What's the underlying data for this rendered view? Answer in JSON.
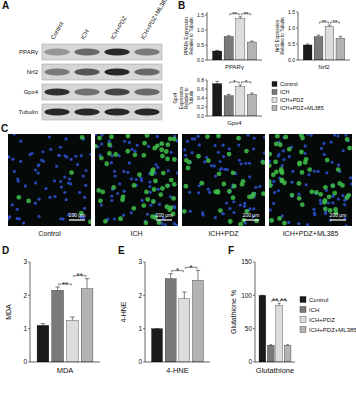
{
  "panel_labels": [
    "A",
    "B",
    "C",
    "D",
    "E",
    "F"
  ],
  "blot": {
    "lanes": [
      "Control",
      "ICH",
      "ICH+PDZ",
      "ICH+PDZ+ML385"
    ],
    "rows": [
      "PPARγ",
      "Nrf2",
      "Gpx4",
      "Tubulin"
    ]
  },
  "images": {
    "groups": [
      "Control",
      "ICH",
      "ICH+PDZ",
      "ICH+PDZ+ML385"
    ],
    "scale_bar": "200 μm"
  },
  "chart_data": [
    {
      "type": "bar",
      "y_label": "PPARγ Expression Relative to Tubulin",
      "categories": [
        "PPARγ"
      ],
      "series": [
        {
          "color": "#1a1a1a",
          "values": [
            0.3
          ],
          "errors": [
            0.02
          ]
        },
        {
          "color": "#7a7a7a",
          "values": [
            0.78
          ],
          "errors": [
            0.03
          ]
        },
        {
          "color": "#dcdcdc",
          "values": [
            1.38
          ],
          "errors": [
            0.06
          ]
        },
        {
          "color": "#b3b3b3",
          "values": [
            0.6
          ],
          "errors": [
            0.03
          ]
        }
      ],
      "ylim": [
        0,
        1.6
      ],
      "yticks": [
        {
          "value": 0,
          "label": "0.0"
        },
        {
          "value": 0.5,
          "label": "0.5"
        },
        {
          "value": 1,
          "label": "1.0"
        },
        {
          "value": 1.5,
          "label": "1.5"
        }
      ],
      "annotations": [
        {
          "text": "**",
          "from": 1,
          "to": 2
        },
        {
          "text": "**",
          "from": 2,
          "to": 3
        }
      ]
    },
    {
      "type": "bar",
      "y_label": "Nrf2 Expression Relative to Tubulin",
      "categories": [
        "Nrf2"
      ],
      "series": [
        {
          "color": "#1a1a1a",
          "values": [
            0.47
          ],
          "errors": [
            0.03
          ]
        },
        {
          "color": "#7a7a7a",
          "values": [
            0.73
          ],
          "errors": [
            0.05
          ]
        },
        {
          "color": "#dcdcdc",
          "values": [
            1.05
          ],
          "errors": [
            0.04
          ]
        },
        {
          "color": "#b3b3b3",
          "values": [
            0.68
          ],
          "errors": [
            0.06
          ]
        }
      ],
      "ylim": [
        0,
        1.5
      ],
      "yticks": [
        {
          "value": 0,
          "label": "0.0"
        },
        {
          "value": 0.5,
          "label": "0.5"
        },
        {
          "value": 1,
          "label": "1.0"
        },
        {
          "value": 1.5,
          "label": "1.5"
        }
      ],
      "annotations": [
        {
          "text": "**",
          "from": 1,
          "to": 2
        },
        {
          "text": "**",
          "from": 2,
          "to": 3
        }
      ]
    },
    {
      "type": "bar",
      "y_label": "Gpx4 Expression Relative to Tubulin",
      "categories": [
        "Gpx4"
      ],
      "series": [
        {
          "name": "Control",
          "color": "#1a1a1a",
          "values": [
            0.72
          ],
          "errors": [
            0.05
          ]
        },
        {
          "name": "ICH",
          "color": "#7a7a7a",
          "values": [
            0.45
          ],
          "errors": [
            0.03
          ]
        },
        {
          "name": "ICH+PDZ",
          "color": "#dcdcdc",
          "values": [
            0.65
          ],
          "errors": [
            0.04
          ]
        },
        {
          "name": "ICH+PDZ+ML385",
          "color": "#b3b3b3",
          "values": [
            0.48
          ],
          "errors": [
            0.03
          ]
        }
      ],
      "ylim": [
        0,
        0.8
      ],
      "yticks": [
        {
          "value": 0,
          "label": "0.0"
        },
        {
          "value": 0.2,
          "label": "0.2"
        },
        {
          "value": 0.4,
          "label": "0.4"
        },
        {
          "value": 0.6,
          "label": "0.6"
        },
        {
          "value": 0.8,
          "label": "0.8"
        }
      ],
      "annotations": [
        {
          "text": "*",
          "from": 1,
          "to": 2
        },
        {
          "text": "*",
          "from": 2,
          "to": 3
        }
      ],
      "legend": "right"
    },
    {
      "type": "bar",
      "y_label": "MDA",
      "categories": [
        "MDA"
      ],
      "series": [
        {
          "color": "#1a1a1a",
          "values": [
            1.1
          ],
          "errors": [
            0.05
          ]
        },
        {
          "color": "#7a7a7a",
          "values": [
            2.15
          ],
          "errors": [
            0.1
          ]
        },
        {
          "color": "#dcdcdc",
          "values": [
            1.25
          ],
          "errors": [
            0.1
          ]
        },
        {
          "color": "#b3b3b3",
          "values": [
            2.2
          ],
          "errors": [
            0.3
          ]
        }
      ],
      "ylim": [
        0,
        3
      ],
      "yticks": [
        0,
        1,
        2,
        3
      ],
      "annotations": [
        {
          "text": "**",
          "from": 1,
          "to": 2
        },
        {
          "text": "**",
          "from": 2,
          "to": 3
        }
      ]
    },
    {
      "type": "bar",
      "y_label": "4-HNE",
      "categories": [
        "4-HNE"
      ],
      "series": [
        {
          "color": "#1a1a1a",
          "values": [
            1.0
          ],
          "errors": [
            0
          ]
        },
        {
          "color": "#7a7a7a",
          "values": [
            2.5
          ],
          "errors": [
            0.15
          ]
        },
        {
          "color": "#dcdcdc",
          "values": [
            1.9
          ],
          "errors": [
            0.2
          ]
        },
        {
          "color": "#b3b3b3",
          "values": [
            2.45
          ],
          "errors": [
            0.3
          ]
        }
      ],
      "ylim": [
        0,
        3
      ],
      "yticks": [
        0,
        1,
        2,
        3
      ],
      "annotations": [
        {
          "text": "*",
          "from": 1,
          "to": 2
        },
        {
          "text": "*",
          "from": 2,
          "to": 3
        }
      ]
    },
    {
      "type": "bar",
      "y_label": "Glutathione %",
      "categories": [
        "Glutathione"
      ],
      "series": [
        {
          "name": "Control",
          "color": "#1a1a1a",
          "values": [
            100
          ],
          "errors": [
            0
          ]
        },
        {
          "name": "ICH",
          "color": "#7a7a7a",
          "values": [
            25
          ],
          "errors": [
            1
          ]
        },
        {
          "name": "ICH+PDZ",
          "color": "#dcdcdc",
          "values": [
            85
          ],
          "errors": [
            3
          ]
        },
        {
          "name": "ICH+PDZ+ML385",
          "color": "#b3b3b3",
          "values": [
            25
          ],
          "errors": [
            1
          ]
        }
      ],
      "ylim": [
        0,
        150
      ],
      "yticks": [
        0,
        50,
        100,
        150
      ],
      "annotations": [
        {
          "text": "**",
          "from": 1,
          "to": 2
        },
        {
          "text": "**",
          "from": 2,
          "to": 3
        }
      ],
      "legend": "right"
    }
  ]
}
